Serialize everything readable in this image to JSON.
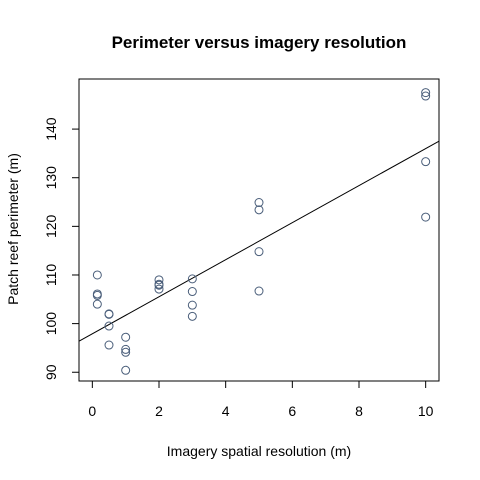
{
  "chart_data": {
    "type": "scatter",
    "title": "Perimeter versus imagery resolution",
    "xlabel": "Imagery spatial resolution (m)",
    "ylabel": "Patch reef perimeter (m)",
    "xlim": [
      -0.4,
      10.4
    ],
    "ylim": [
      88.2,
      150.3
    ],
    "xticks": [
      0,
      2,
      4,
      6,
      8,
      10
    ],
    "yticks": [
      90,
      100,
      110,
      120,
      130,
      140
    ],
    "grid": false,
    "legend": "none",
    "point_color": "#4a5e7a",
    "line_color": "#000000",
    "points": [
      {
        "x": 0.15,
        "y": 110.0
      },
      {
        "x": 0.15,
        "y": 106.1
      },
      {
        "x": 0.15,
        "y": 105.8
      },
      {
        "x": 0.15,
        "y": 104.0
      },
      {
        "x": 0.5,
        "y": 102.0
      },
      {
        "x": 0.5,
        "y": 101.9
      },
      {
        "x": 0.5,
        "y": 99.5
      },
      {
        "x": 0.5,
        "y": 95.6
      },
      {
        "x": 1,
        "y": 97.2
      },
      {
        "x": 1,
        "y": 94.7
      },
      {
        "x": 1,
        "y": 94.1
      },
      {
        "x": 1,
        "y": 90.4
      },
      {
        "x": 2,
        "y": 109.0
      },
      {
        "x": 2,
        "y": 108.1
      },
      {
        "x": 2,
        "y": 107.9
      },
      {
        "x": 2,
        "y": 107.1
      },
      {
        "x": 3,
        "y": 109.2
      },
      {
        "x": 3,
        "y": 106.6
      },
      {
        "x": 3,
        "y": 103.8
      },
      {
        "x": 3,
        "y": 101.5
      },
      {
        "x": 5,
        "y": 124.9
      },
      {
        "x": 5,
        "y": 123.4
      },
      {
        "x": 5,
        "y": 114.8
      },
      {
        "x": 5,
        "y": 106.7
      },
      {
        "x": 10,
        "y": 147.5
      },
      {
        "x": 10,
        "y": 146.8
      },
      {
        "x": 10,
        "y": 133.3
      },
      {
        "x": 10,
        "y": 121.9
      }
    ],
    "fit_line": {
      "intercept": 97.9,
      "slope": 3.81
    }
  }
}
